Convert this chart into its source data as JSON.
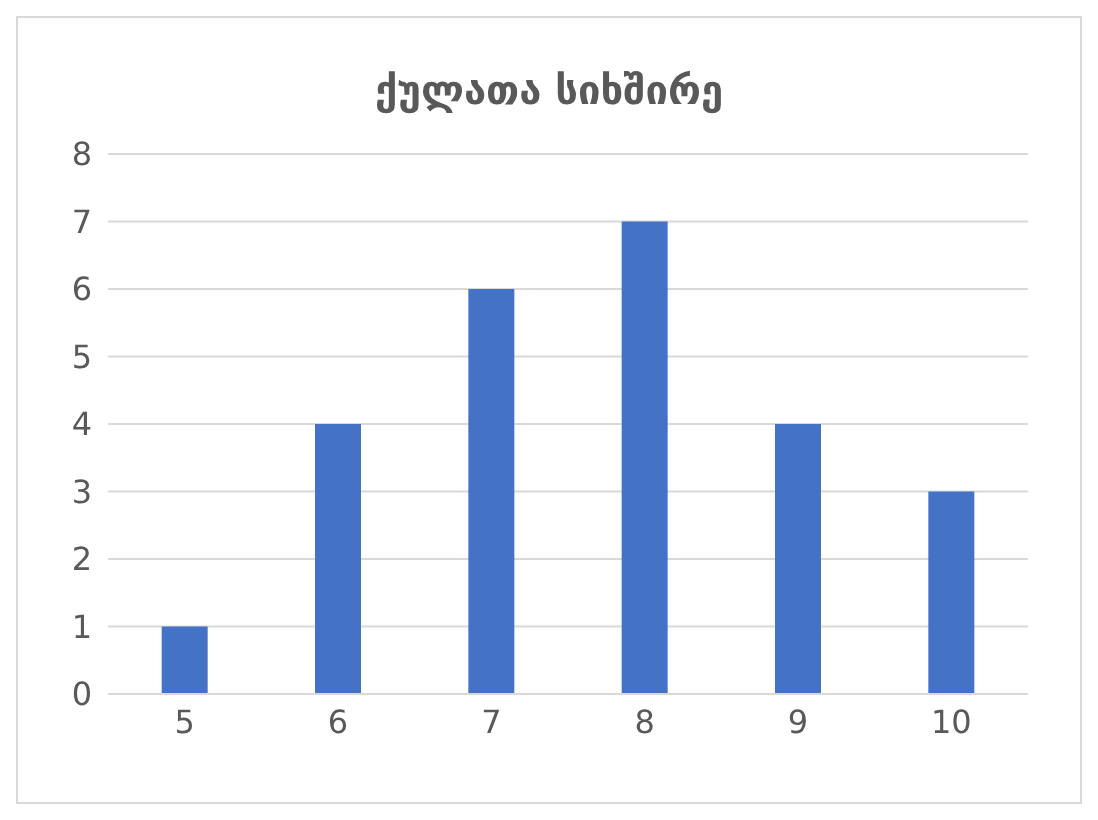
{
  "chart_data": {
    "type": "bar",
    "title": "ქულათა სიხშირე",
    "categories": [
      "5",
      "6",
      "7",
      "8",
      "9",
      "10"
    ],
    "values": [
      1,
      4,
      6,
      7,
      4,
      3
    ],
    "color": "#4472c4",
    "ylim": [
      0,
      8
    ],
    "yticks": [
      0,
      1,
      2,
      3,
      4,
      5,
      6,
      7,
      8
    ],
    "grid": "y"
  }
}
